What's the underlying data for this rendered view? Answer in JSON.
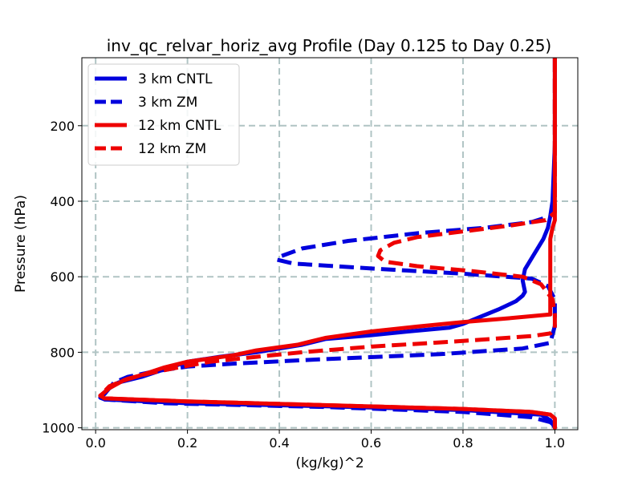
{
  "chart_data": {
    "type": "line",
    "title": "inv_qc_relvar_horiz_avg Profile (Day 0.125 to Day 0.25)",
    "xlabel": "(kg/kg)^2",
    "ylabel": "Pressure (hPa)",
    "xlim": [
      -0.03,
      1.05
    ],
    "ylim": [
      1005,
      20
    ],
    "y_inverted": true,
    "grid": true,
    "legend_position": "top-left",
    "xticks": [
      0.0,
      0.2,
      0.4,
      0.6,
      0.8,
      1.0
    ],
    "xtick_labels": [
      "0.0",
      "0.2",
      "0.4",
      "0.6",
      "0.8",
      "1.0"
    ],
    "yticks": [
      200,
      400,
      600,
      800,
      1000
    ],
    "ytick_labels": [
      "200",
      "400",
      "600",
      "800",
      "1000"
    ],
    "series": [
      {
        "name": "3 km CNTL",
        "color": "#0000dd",
        "dash": "solid",
        "points": [
          [
            1.0,
            20
          ],
          [
            1.0,
            150
          ],
          [
            1.0,
            250
          ],
          [
            0.995,
            400
          ],
          [
            0.99,
            440
          ],
          [
            0.985,
            470
          ],
          [
            0.975,
            500
          ],
          [
            0.955,
            540
          ],
          [
            0.935,
            580
          ],
          [
            0.93,
            610
          ],
          [
            0.935,
            640
          ],
          [
            0.93,
            650
          ],
          [
            0.915,
            665
          ],
          [
            0.88,
            685
          ],
          [
            0.84,
            705
          ],
          [
            0.8,
            725
          ],
          [
            0.77,
            735
          ],
          [
            0.68,
            745
          ],
          [
            0.6,
            755
          ],
          [
            0.5,
            765
          ],
          [
            0.45,
            780
          ],
          [
            0.35,
            800
          ],
          [
            0.27,
            812
          ],
          [
            0.2,
            825
          ],
          [
            0.15,
            845
          ],
          [
            0.1,
            865
          ],
          [
            0.05,
            880
          ],
          [
            0.03,
            895
          ],
          [
            0.02,
            910
          ],
          [
            0.01,
            920
          ],
          [
            0.02,
            925
          ],
          [
            0.2,
            935
          ],
          [
            0.5,
            943
          ],
          [
            0.8,
            953
          ],
          [
            0.97,
            965
          ],
          [
            0.99,
            980
          ],
          [
            1.0,
            1000
          ]
        ]
      },
      {
        "name": "3 km ZM",
        "color": "#0000dd",
        "dash": "dashed",
        "points": [
          [
            1.0,
            20
          ],
          [
            1.0,
            200
          ],
          [
            1.0,
            400
          ],
          [
            0.99,
            440
          ],
          [
            0.95,
            455
          ],
          [
            0.85,
            470
          ],
          [
            0.7,
            485
          ],
          [
            0.55,
            505
          ],
          [
            0.45,
            525
          ],
          [
            0.405,
            545
          ],
          [
            0.395,
            555
          ],
          [
            0.43,
            565
          ],
          [
            0.6,
            578
          ],
          [
            0.8,
            592
          ],
          [
            0.95,
            605
          ],
          [
            0.985,
            625
          ],
          [
            1.0,
            660
          ],
          [
            1.0,
            730
          ],
          [
            0.99,
            775
          ],
          [
            0.93,
            790
          ],
          [
            0.75,
            805
          ],
          [
            0.5,
            818
          ],
          [
            0.3,
            830
          ],
          [
            0.2,
            838
          ],
          [
            0.13,
            850
          ],
          [
            0.07,
            865
          ],
          [
            0.04,
            880
          ],
          [
            0.03,
            895
          ],
          [
            0.01,
            915
          ],
          [
            0.02,
            925
          ],
          [
            0.15,
            935
          ],
          [
            0.5,
            945
          ],
          [
            0.8,
            958
          ],
          [
            0.95,
            972
          ],
          [
            0.99,
            985
          ],
          [
            1.0,
            995
          ]
        ]
      },
      {
        "name": "12 km CNTL",
        "color": "#ee0000",
        "dash": "solid",
        "points": [
          [
            1.0,
            20
          ],
          [
            1.0,
            200
          ],
          [
            1.0,
            450
          ],
          [
            0.995,
            470
          ],
          [
            0.99,
            500
          ],
          [
            0.99,
            700
          ],
          [
            0.9,
            710
          ],
          [
            0.8,
            720
          ],
          [
            0.7,
            732
          ],
          [
            0.6,
            745
          ],
          [
            0.5,
            762
          ],
          [
            0.44,
            780
          ],
          [
            0.35,
            795
          ],
          [
            0.3,
            808
          ],
          [
            0.2,
            825
          ],
          [
            0.15,
            840
          ],
          [
            0.1,
            860
          ],
          [
            0.06,
            875
          ],
          [
            0.03,
            895
          ],
          [
            0.01,
            915
          ],
          [
            0.02,
            922
          ],
          [
            0.2,
            930
          ],
          [
            0.5,
            940
          ],
          [
            0.8,
            950
          ],
          [
            0.95,
            958
          ],
          [
            0.99,
            965
          ],
          [
            1.0,
            975
          ],
          [
            1.0,
            1000
          ]
        ]
      },
      {
        "name": "12 km ZM",
        "color": "#ee0000",
        "dash": "dashed",
        "points": [
          [
            1.0,
            20
          ],
          [
            1.0,
            200
          ],
          [
            1.0,
            430
          ],
          [
            0.98,
            450
          ],
          [
            0.9,
            465
          ],
          [
            0.8,
            480
          ],
          [
            0.7,
            495
          ],
          [
            0.65,
            510
          ],
          [
            0.62,
            530
          ],
          [
            0.615,
            545
          ],
          [
            0.63,
            560
          ],
          [
            0.7,
            572
          ],
          [
            0.82,
            585
          ],
          [
            0.93,
            600
          ],
          [
            0.97,
            620
          ],
          [
            0.995,
            660
          ],
          [
            1.0,
            700
          ],
          [
            1.0,
            740
          ],
          [
            0.99,
            750
          ],
          [
            0.95,
            757
          ],
          [
            0.8,
            770
          ],
          [
            0.6,
            785
          ],
          [
            0.45,
            800
          ],
          [
            0.35,
            812
          ],
          [
            0.25,
            825
          ],
          [
            0.18,
            840
          ],
          [
            0.12,
            855
          ],
          [
            0.07,
            870
          ],
          [
            0.03,
            890
          ],
          [
            0.01,
            915
          ],
          [
            0.02,
            922
          ],
          [
            0.2,
            930
          ],
          [
            0.5,
            940
          ],
          [
            0.8,
            950
          ],
          [
            0.95,
            958
          ],
          [
            0.99,
            965
          ],
          [
            1.0,
            975
          ],
          [
            1.0,
            1000
          ]
        ]
      }
    ]
  }
}
